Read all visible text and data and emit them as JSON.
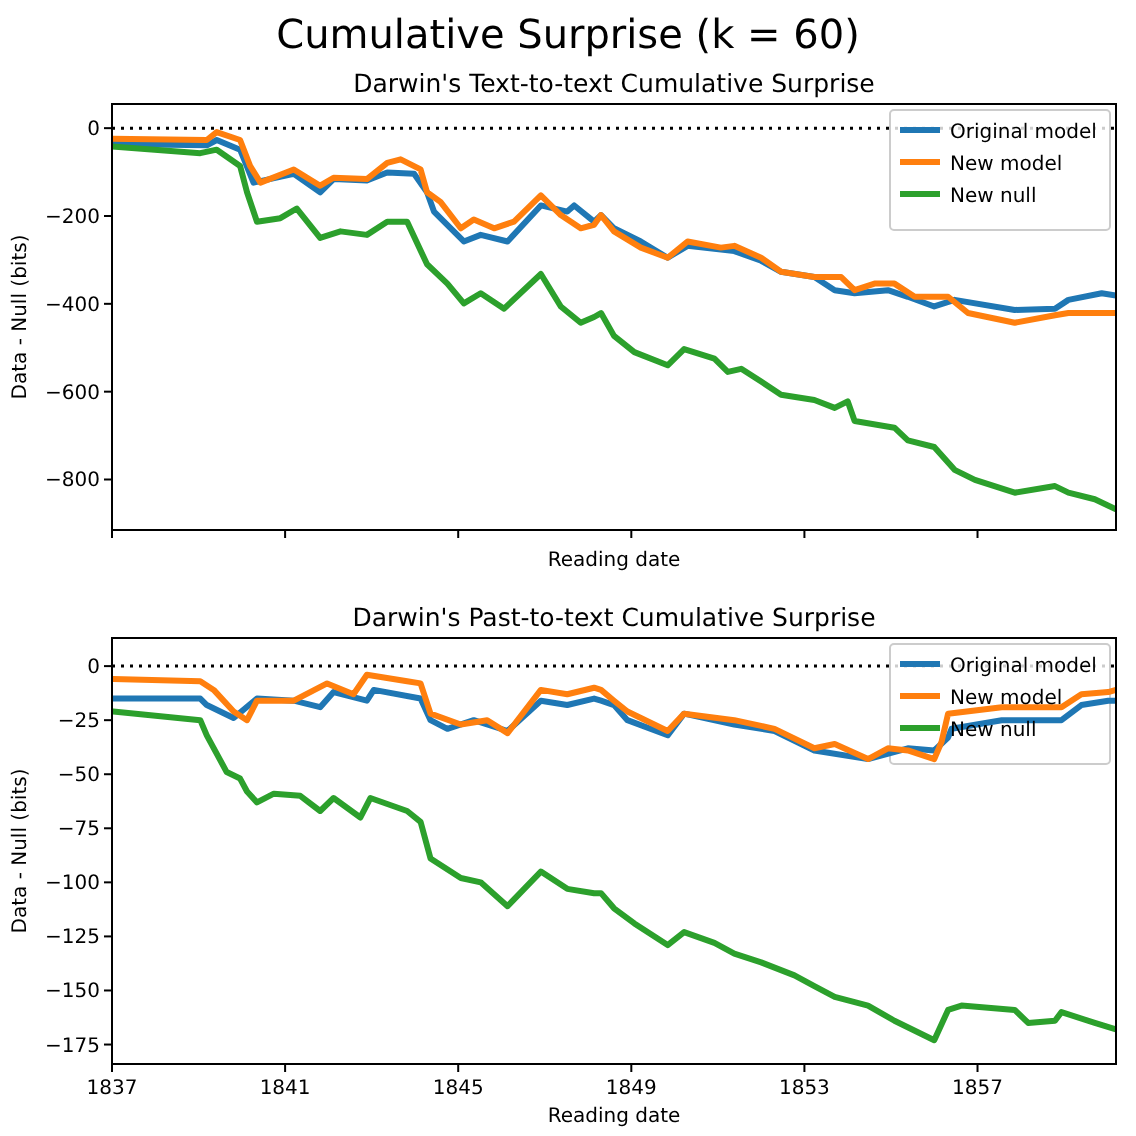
{
  "chart_data": [
    {
      "type": "line",
      "title": "Cumulative Surprise (k = 60)",
      "subtitle": "Darwin's Text-to-text Cumulative Surprise",
      "xlabel": "Reading date",
      "ylabel": "Data - Null (bits)",
      "xlim": [
        1837,
        1860.2
      ],
      "xticks": [
        1837,
        1841,
        1845,
        1849,
        1853,
        1857
      ],
      "ylim": [
        -915,
        55
      ],
      "yticks": [
        0,
        {
          "value": -200,
          "label": "−200"
        },
        {
          "value": -400,
          "label": "−400"
        },
        {
          "value": -600,
          "label": "−600"
        },
        {
          "value": -800,
          "label": "−800"
        }
      ],
      "tick_labels": "y",
      "legend": "top right",
      "grid": false,
      "line_style": "solid",
      "marker": "none",
      "ref_lines": [
        {
          "axis": "y",
          "value": 0,
          "color": "#000000",
          "line_style": "dotted"
        }
      ],
      "series": [
        {
          "name": "Original model",
          "color": "#1f77b4",
          "x": [
            1837.0,
            1839.19,
            1839.42,
            1839.96,
            1840.27,
            1841.2,
            1841.81,
            1842.12,
            1842.89,
            1843.36,
            1843.98,
            1844.28,
            1844.44,
            1845.13,
            1845.52,
            1846.14,
            1846.91,
            1847.52,
            1847.68,
            1848.14,
            1848.3,
            1848.6,
            1849.22,
            1849.84,
            1850.3,
            1851.38,
            1852.0,
            1852.46,
            1853.23,
            1853.7,
            1854.16,
            1854.93,
            1855.39,
            1856.0,
            1856.47,
            1857.86,
            1858.79,
            1859.1,
            1859.87,
            1860.2
          ],
          "values": [
            -36,
            -39,
            -27,
            -49,
            -124,
            -104,
            -146,
            -116,
            -119,
            -101,
            -104,
            -146,
            -190,
            -258,
            -243,
            -258,
            -176,
            -190,
            -176,
            -213,
            -198,
            -228,
            -258,
            -295,
            -268,
            -280,
            -302,
            -327,
            -339,
            -369,
            -376,
            -369,
            -384,
            -406,
            -391,
            -414,
            -411,
            -391,
            -376,
            -381
          ]
        },
        {
          "name": "New model",
          "color": "#ff7f0e",
          "x": [
            1837.0,
            1839.19,
            1839.42,
            1839.96,
            1840.19,
            1840.43,
            1841.2,
            1841.81,
            1842.12,
            1842.89,
            1843.36,
            1843.67,
            1844.13,
            1844.28,
            1844.59,
            1845.06,
            1845.36,
            1845.83,
            1846.29,
            1846.91,
            1847.37,
            1847.83,
            1848.14,
            1848.3,
            1848.6,
            1849.22,
            1849.84,
            1850.3,
            1851.07,
            1851.38,
            1852.0,
            1852.46,
            1853.23,
            1853.85,
            1854.16,
            1854.62,
            1855.08,
            1855.55,
            1856.32,
            1856.78,
            1857.86,
            1858.79,
            1859.1,
            1860.2
          ],
          "values": [
            -24,
            -27,
            -9,
            -27,
            -86,
            -124,
            -94,
            -131,
            -113,
            -116,
            -79,
            -71,
            -94,
            -146,
            -168,
            -228,
            -208,
            -228,
            -213,
            -153,
            -198,
            -228,
            -220,
            -198,
            -235,
            -272,
            -295,
            -258,
            -272,
            -268,
            -295,
            -327,
            -339,
            -339,
            -369,
            -354,
            -354,
            -384,
            -384,
            -421,
            -443,
            -426,
            -421,
            -421
          ]
        },
        {
          "name": "New null",
          "color": "#2ca02c",
          "x": [
            1837.0,
            1839.04,
            1839.42,
            1839.96,
            1840.12,
            1840.35,
            1840.89,
            1841.27,
            1841.81,
            1842.28,
            1842.89,
            1843.36,
            1843.82,
            1844.28,
            1844.75,
            1845.13,
            1845.52,
            1846.06,
            1846.91,
            1847.37,
            1847.83,
            1848.14,
            1848.3,
            1848.6,
            1849.07,
            1849.84,
            1850.22,
            1850.92,
            1851.23,
            1851.54,
            1852.0,
            1852.46,
            1853.23,
            1853.7,
            1854.0,
            1854.16,
            1855.08,
            1855.39,
            1856.0,
            1856.47,
            1856.94,
            1857.86,
            1858.79,
            1859.1,
            1859.71,
            1860.2
          ],
          "values": [
            -42,
            -57,
            -49,
            -86,
            -146,
            -213,
            -205,
            -183,
            -250,
            -235,
            -243,
            -213,
            -213,
            -310,
            -354,
            -399,
            -376,
            -411,
            -332,
            -406,
            -443,
            -430,
            -421,
            -473,
            -510,
            -540,
            -503,
            -525,
            -555,
            -548,
            -577,
            -607,
            -619,
            -637,
            -622,
            -667,
            -682,
            -711,
            -726,
            -778,
            -801,
            -830,
            -815,
            -830,
            -845,
            -868
          ]
        }
      ]
    },
    {
      "type": "line",
      "subtitle": "Darwin's Past-to-text Cumulative Surprise",
      "xlabel": "Reading date",
      "ylabel": "Data - Null (bits)",
      "xlim": [
        1837,
        1860.2
      ],
      "xticks": [
        1837,
        1841,
        1845,
        1849,
        1853,
        1857
      ],
      "ylim": [
        -184,
        13
      ],
      "yticks": [
        0,
        {
          "value": -25,
          "label": "−25"
        },
        {
          "value": -50,
          "label": "−50"
        },
        {
          "value": -75,
          "label": "−75"
        },
        {
          "value": -100,
          "label": "−100"
        },
        {
          "value": -125,
          "label": "−125"
        },
        {
          "value": -150,
          "label": "−150"
        },
        {
          "value": -175,
          "label": "−175"
        }
      ],
      "legend": "top right",
      "grid": false,
      "line_style": "solid",
      "marker": "none",
      "ref_lines": [
        {
          "axis": "y",
          "value": 0,
          "color": "#000000",
          "line_style": "dotted"
        }
      ],
      "series": [
        {
          "name": "Original model",
          "color": "#1f77b4",
          "x": [
            1837.03,
            1839.04,
            1839.19,
            1839.81,
            1840.35,
            1841.2,
            1841.81,
            1842.12,
            1842.89,
            1843.05,
            1844.13,
            1844.36,
            1844.75,
            1845.36,
            1846.14,
            1846.91,
            1847.52,
            1848.14,
            1848.3,
            1848.6,
            1848.91,
            1849.84,
            1850.22,
            1851.38,
            1852.31,
            1853.23,
            1854.47,
            1855.39,
            1856.0,
            1856.32,
            1856.4,
            1857.56,
            1858.94,
            1859.4,
            1860.02,
            1860.2
          ],
          "values": [
            -15,
            -15,
            -18,
            -24,
            -15,
            -16,
            -19,
            -12,
            -16,
            -11,
            -15,
            -25,
            -29,
            -25,
            -30,
            -16,
            -18,
            -15,
            -16,
            -18,
            -25,
            -32,
            -22,
            -27,
            -30,
            -39,
            -43,
            -38,
            -39,
            -33,
            -29,
            -25,
            -25,
            -18,
            -16,
            -16
          ]
        },
        {
          "name": "New model",
          "color": "#ff7f0e",
          "x": [
            1837.03,
            1839.04,
            1839.35,
            1839.81,
            1840.12,
            1840.35,
            1841.2,
            1841.97,
            1842.58,
            1842.89,
            1843.82,
            1844.13,
            1844.36,
            1845.06,
            1845.67,
            1846.14,
            1846.91,
            1847.52,
            1848.14,
            1848.3,
            1848.6,
            1848.91,
            1849.84,
            1850.22,
            1851.38,
            1852.31,
            1853.23,
            1853.7,
            1854.47,
            1854.93,
            1855.39,
            1856.0,
            1856.17,
            1856.32,
            1857.56,
            1858.94,
            1859.4,
            1860.02,
            1860.2
          ],
          "values": [
            -6,
            -7,
            -11,
            -21,
            -25,
            -16,
            -16,
            -8,
            -13,
            -4,
            -7,
            -8,
            -22,
            -27,
            -25,
            -31,
            -11,
            -13,
            -10,
            -11,
            -16,
            -21,
            -30,
            -22,
            -25,
            -29,
            -38,
            -36,
            -43,
            -38,
            -39,
            -43,
            -35,
            -22,
            -19,
            -19,
            -13,
            -12,
            -11
          ]
        },
        {
          "name": "New null",
          "color": "#2ca02c",
          "x": [
            1837.03,
            1839.04,
            1839.19,
            1839.65,
            1839.96,
            1840.12,
            1840.35,
            1840.74,
            1841.35,
            1841.81,
            1842.12,
            1842.74,
            1842.97,
            1843.82,
            1844.13,
            1844.36,
            1845.06,
            1845.52,
            1846.14,
            1846.91,
            1847.52,
            1848.14,
            1848.3,
            1848.6,
            1849.07,
            1849.84,
            1850.22,
            1850.92,
            1851.38,
            1852.0,
            1852.77,
            1853.23,
            1853.7,
            1854.47,
            1855.08,
            1856.0,
            1856.32,
            1856.63,
            1857.86,
            1858.17,
            1858.79,
            1858.94,
            1859.71,
            1860.2
          ],
          "values": [
            -21,
            -25,
            -32,
            -49,
            -52,
            -58,
            -63,
            -59,
            -60,
            -67,
            -61,
            -70,
            -61,
            -67,
            -72,
            -89,
            -98,
            -100,
            -111,
            -95,
            -103,
            -105,
            -105,
            -112,
            -119,
            -129,
            -123,
            -128,
            -133,
            -137,
            -143,
            -148,
            -153,
            -157,
            -164,
            -173,
            -159,
            -157,
            -159,
            -165,
            -164,
            -160,
            -165,
            -168
          ]
        }
      ]
    }
  ]
}
